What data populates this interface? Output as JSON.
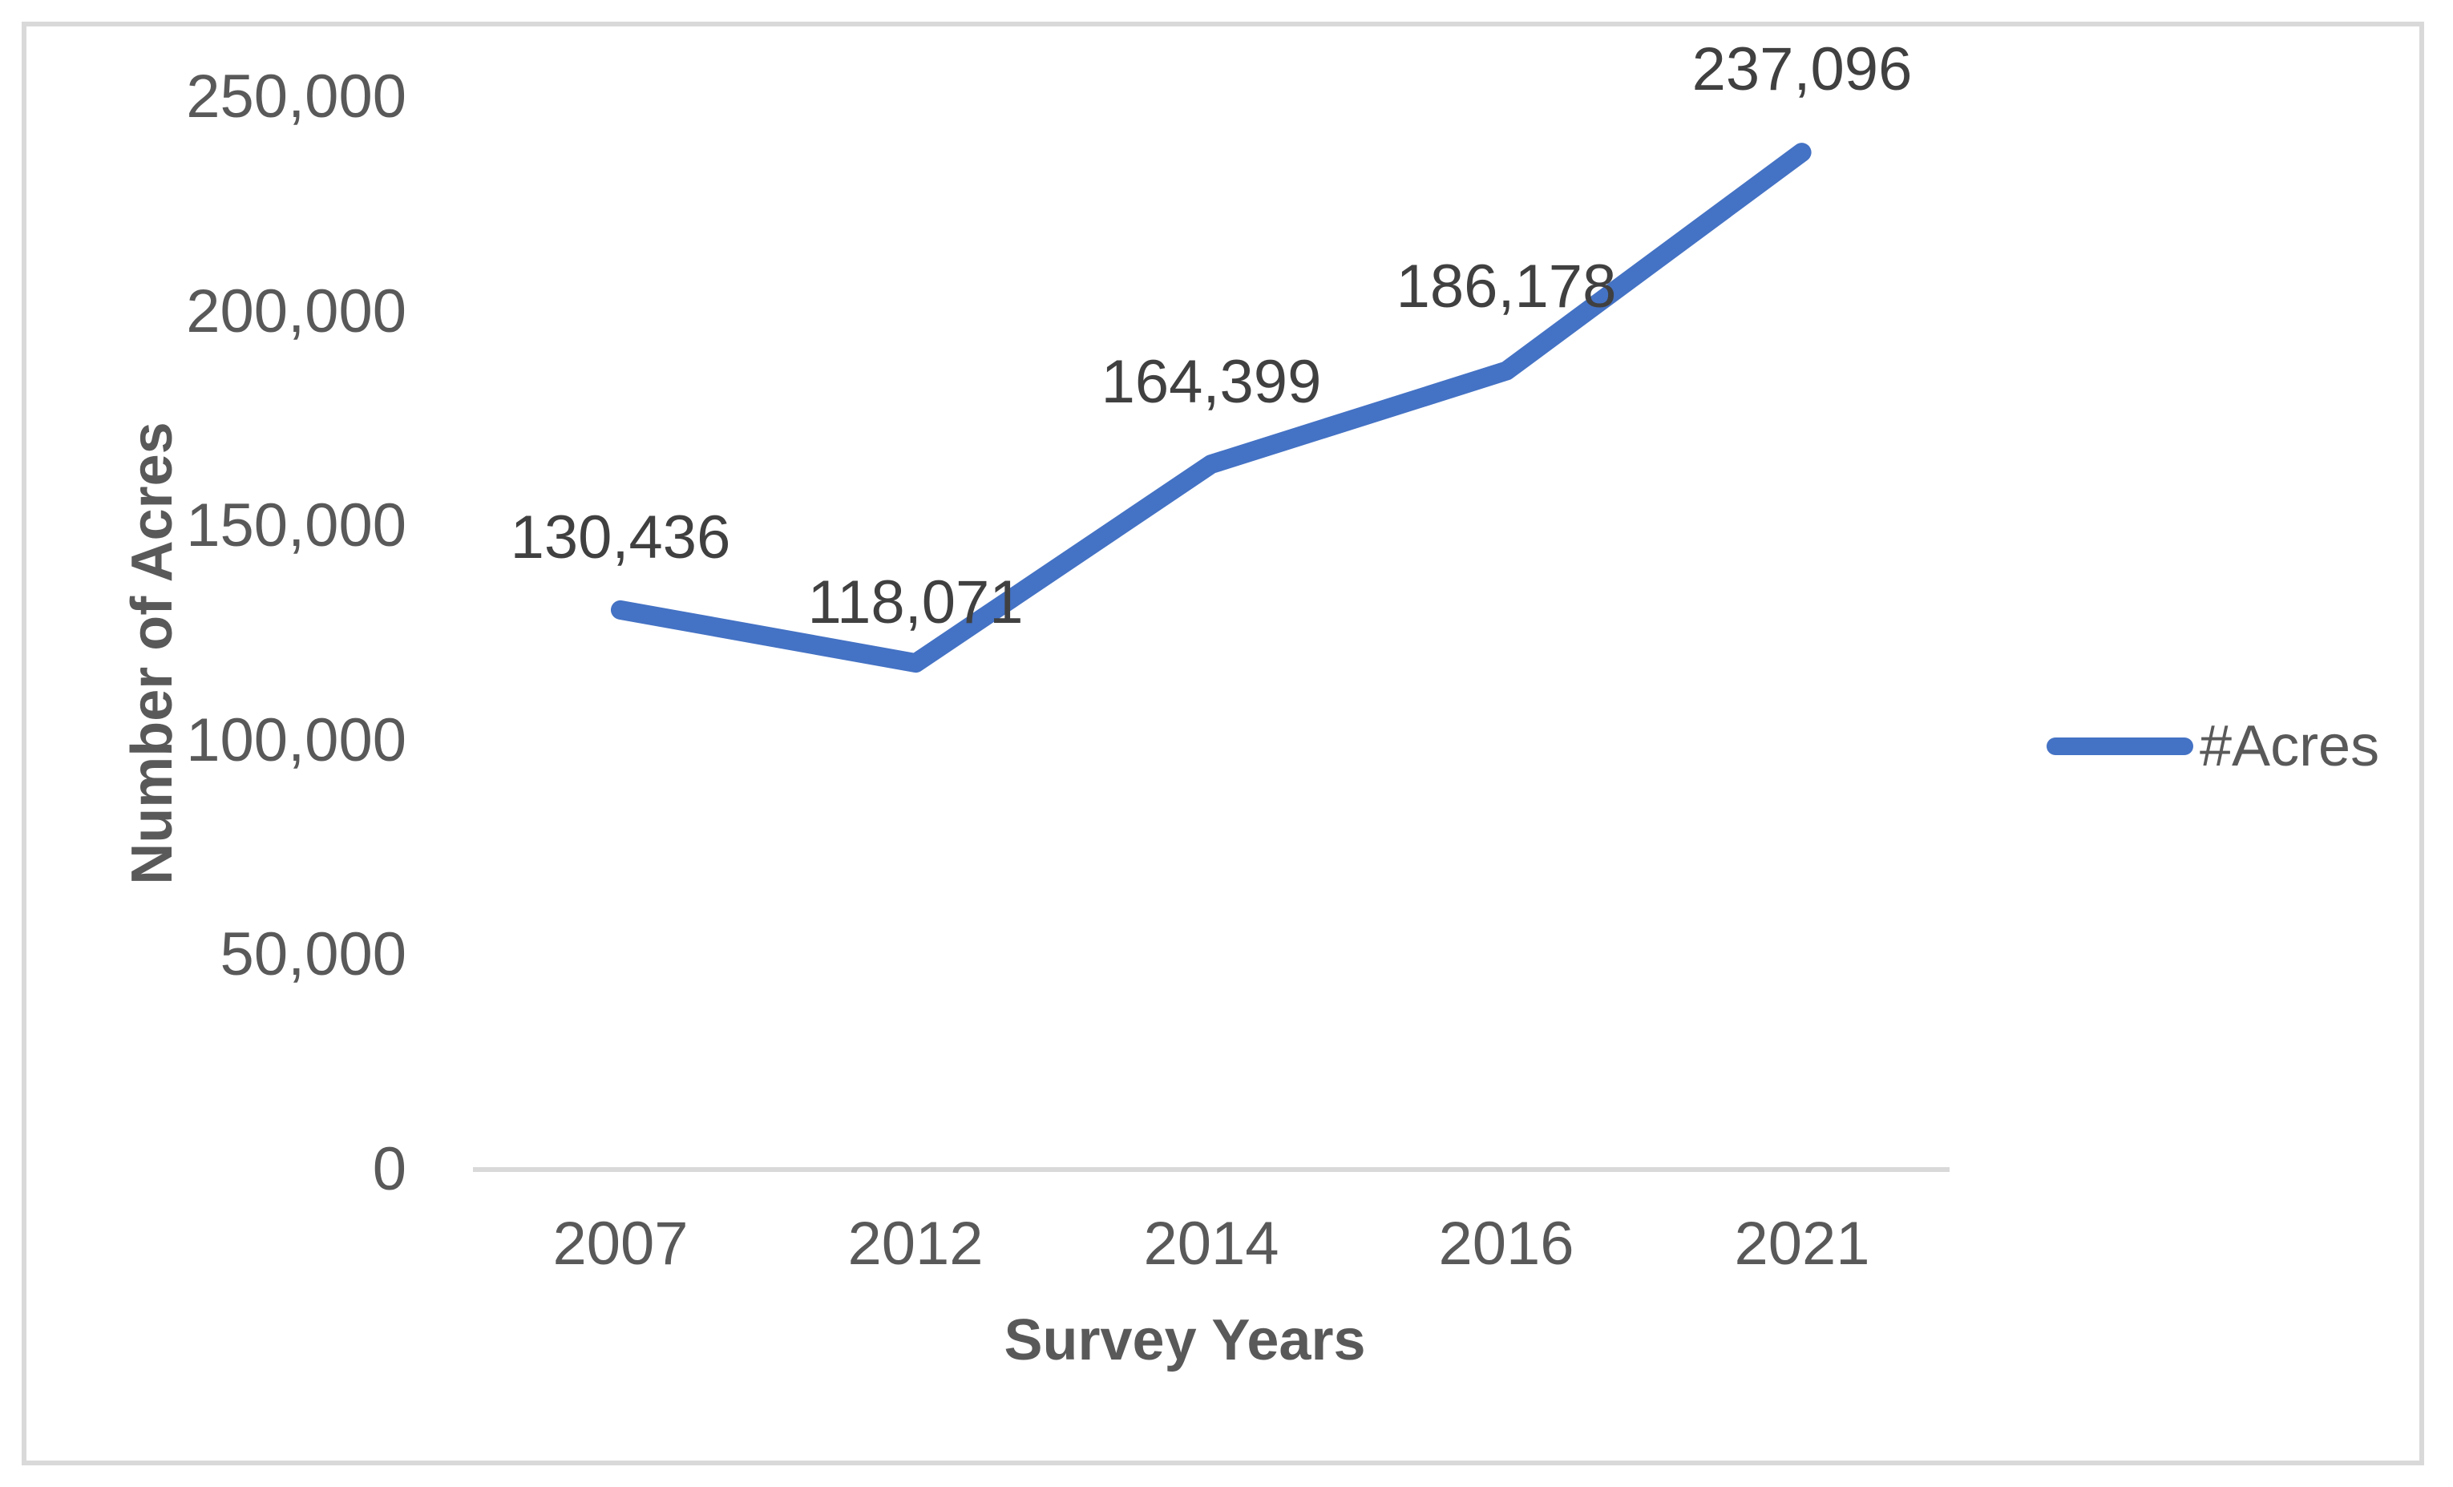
{
  "chart_data": {
    "type": "line",
    "title": "",
    "categories": [
      "2007",
      "2012",
      "2014",
      "2016",
      "2021"
    ],
    "series": [
      {
        "name": "#Acres",
        "values": [
          130436,
          118071,
          164399,
          186178,
          237096
        ]
      }
    ],
    "data_labels": [
      "130,436",
      "118,071",
      "164,399",
      "186,178",
      "237,096"
    ],
    "xlabel": "Survey Years",
    "ylabel": "Number of Acres",
    "y_ticks": [
      {
        "label": "250,000",
        "value": 250000
      },
      {
        "label": "200,000",
        "value": 200000
      },
      {
        "label": "150,000",
        "value": 150000
      },
      {
        "label": "100,000",
        "value": 100000
      },
      {
        "label": "50,000",
        "value": 50000
      },
      {
        "label": "0",
        "value": 0
      }
    ],
    "ylim": [
      0,
      250000
    ],
    "grid": false,
    "legend": {
      "label": "#Acres",
      "position": "right"
    },
    "colors": {
      "line": "#4472C4",
      "axis_line": "#D9D9D9",
      "border": "#D9D9D9",
      "tick_text": "#595959",
      "axis_title_text": "#595959",
      "data_label_text": "#404040",
      "legend_text": "#595959"
    }
  }
}
